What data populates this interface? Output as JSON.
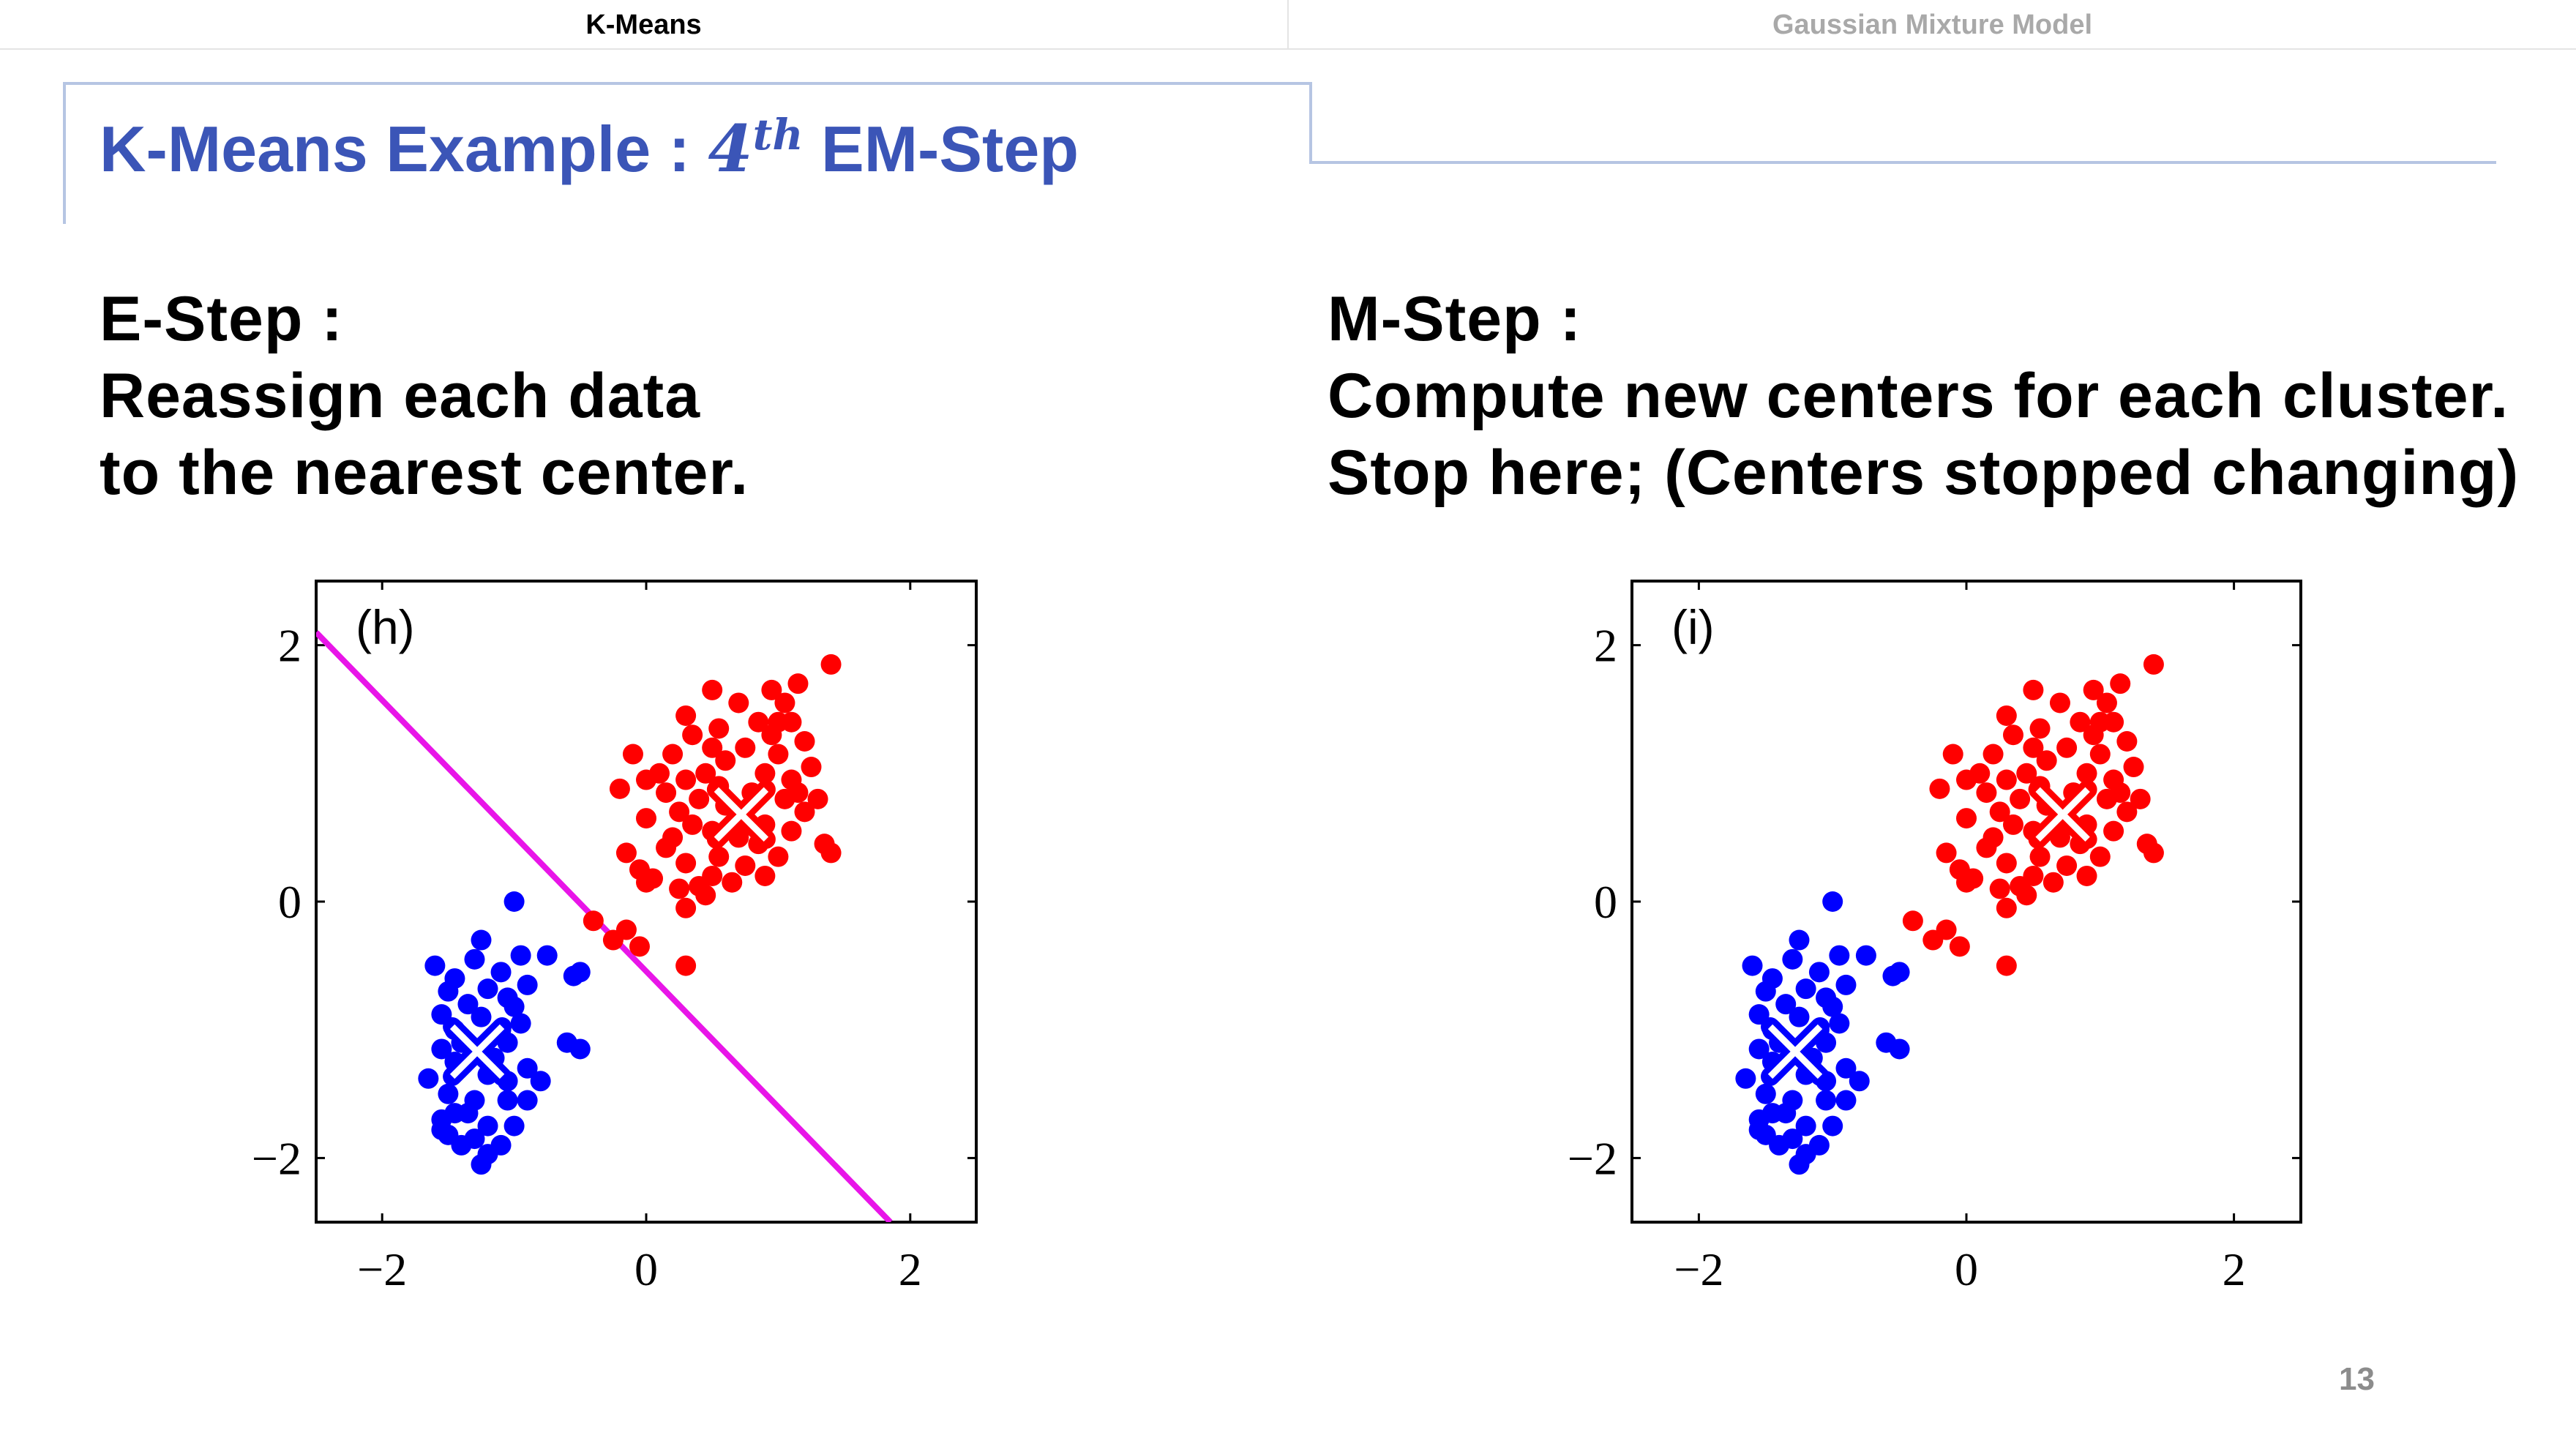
{
  "tabs": [
    {
      "label": "K-Means",
      "active": true
    },
    {
      "label": "Gaussian Mixture Model",
      "active": false
    }
  ],
  "slide_title": {
    "prefix": "K-Means Example : ",
    "math_base": "4",
    "math_sup": "th",
    "suffix": " EM-Step"
  },
  "left_text": {
    "heading": "E-Step :",
    "line1": "Reassign each data",
    "line2": "to the nearest center."
  },
  "right_text": {
    "heading": "M-Step :",
    "line1": "Compute new centers for each cluster.",
    "line2": "Stop here; (Centers stopped changing)"
  },
  "page_number": "13",
  "colors": {
    "red_cluster": "#ff0000",
    "blue_cluster": "#0000ff",
    "boundary": "#e815e8",
    "title": "#3b55b7"
  },
  "chart_data": [
    {
      "type": "scatter",
      "panel_label": "(h)",
      "xlim": [
        -2.5,
        2.5
      ],
      "ylim": [
        -2.5,
        2.5
      ],
      "x_ticks": [
        -2,
        0,
        2
      ],
      "y_ticks": [
        -2,
        0,
        2
      ],
      "tick_labels": [
        "−2",
        "0",
        "2"
      ],
      "centers": [
        {
          "cluster": "red",
          "x": 0.72,
          "y": 0.68
        },
        {
          "cluster": "blue",
          "x": -1.28,
          "y": -1.17
        }
      ],
      "decision_boundary": {
        "from": [
          -2.5,
          2.1
        ],
        "to": [
          1.85,
          -2.5
        ]
      },
      "series": [
        {
          "cluster": "red",
          "points": [
            [
              1.4,
              1.85
            ],
            [
              1.15,
              1.7
            ],
            [
              0.5,
              1.65
            ],
            [
              0.95,
              1.65
            ],
            [
              0.7,
              1.55
            ],
            [
              1.05,
              1.55
            ],
            [
              0.3,
              1.45
            ],
            [
              0.85,
              1.4
            ],
            [
              1.1,
              1.4
            ],
            [
              0.55,
              1.35
            ],
            [
              0.35,
              1.3
            ],
            [
              0.95,
              1.3
            ],
            [
              1.2,
              1.25
            ],
            [
              0.5,
              1.2
            ],
            [
              0.75,
              1.2
            ],
            [
              1.0,
              1.15
            ],
            [
              -0.1,
              1.15
            ],
            [
              0.2,
              1.15
            ],
            [
              0.6,
              1.1
            ],
            [
              1.25,
              1.05
            ],
            [
              0.45,
              1.0
            ],
            [
              0.9,
              1.0
            ],
            [
              1.1,
              0.95
            ],
            [
              0.0,
              0.95
            ],
            [
              0.3,
              0.95
            ],
            [
              0.55,
              0.9
            ],
            [
              1.15,
              0.85
            ],
            [
              -0.2,
              0.88
            ],
            [
              0.15,
              0.85
            ],
            [
              0.4,
              0.8
            ],
            [
              0.8,
              0.85
            ],
            [
              1.05,
              0.8
            ],
            [
              1.3,
              0.8
            ],
            [
              0.25,
              0.7
            ],
            [
              0.6,
              0.75
            ],
            [
              1.2,
              0.7
            ],
            [
              0.0,
              0.65
            ],
            [
              0.35,
              0.6
            ],
            [
              0.5,
              0.55
            ],
            [
              0.9,
              0.6
            ],
            [
              1.1,
              0.55
            ],
            [
              0.7,
              0.5
            ],
            [
              0.2,
              0.5
            ],
            [
              0.85,
              0.45
            ],
            [
              1.35,
              0.45
            ],
            [
              0.15,
              0.42
            ],
            [
              1.4,
              0.38
            ],
            [
              -0.15,
              0.38
            ],
            [
              0.55,
              0.35
            ],
            [
              1.0,
              0.35
            ],
            [
              0.3,
              0.3
            ],
            [
              0.75,
              0.28
            ],
            [
              -0.05,
              0.25
            ],
            [
              0.5,
              0.2
            ],
            [
              0.05,
              0.18
            ],
            [
              0.25,
              0.1
            ],
            [
              0.65,
              0.15
            ],
            [
              0.9,
              0.2
            ],
            [
              0.45,
              0.05
            ],
            [
              0.3,
              -0.05
            ],
            [
              -0.4,
              -0.15
            ],
            [
              -0.15,
              -0.22
            ],
            [
              -0.25,
              -0.3
            ],
            [
              -0.05,
              -0.35
            ],
            [
              0.3,
              -0.5
            ],
            [
              0.0,
              0.15
            ],
            [
              0.4,
              0.12
            ],
            [
              1.0,
              1.4
            ],
            [
              0.1,
              1.0
            ]
          ]
        },
        {
          "cluster": "blue",
          "points": [
            [
              -1.0,
              0.0
            ],
            [
              -1.25,
              -0.3
            ],
            [
              -1.3,
              -0.45
            ],
            [
              -0.75,
              -0.42
            ],
            [
              -0.95,
              -0.42
            ],
            [
              -1.6,
              -0.5
            ],
            [
              -1.45,
              -0.6
            ],
            [
              -1.1,
              -0.55
            ],
            [
              -0.55,
              -0.58
            ],
            [
              -1.5,
              -0.7
            ],
            [
              -1.2,
              -0.68
            ],
            [
              -0.9,
              -0.65
            ],
            [
              -1.05,
              -0.75
            ],
            [
              -1.35,
              -0.8
            ],
            [
              -1.0,
              -0.82
            ],
            [
              -1.55,
              -0.88
            ],
            [
              -1.25,
              -0.9
            ],
            [
              -1.45,
              -1.0
            ],
            [
              -1.1,
              -1.0
            ],
            [
              -0.95,
              -0.95
            ],
            [
              -1.4,
              -1.1
            ],
            [
              -0.6,
              -1.1
            ],
            [
              -1.55,
              -1.15
            ],
            [
              -1.05,
              -1.1
            ],
            [
              -0.5,
              -1.15
            ],
            [
              -1.45,
              -1.25
            ],
            [
              -0.9,
              -1.3
            ],
            [
              -1.2,
              -1.35
            ],
            [
              -1.65,
              -1.38
            ],
            [
              -1.05,
              -1.4
            ],
            [
              -0.8,
              -1.4
            ],
            [
              -1.5,
              -1.5
            ],
            [
              -1.3,
              -1.55
            ],
            [
              -1.05,
              -1.55
            ],
            [
              -0.9,
              -1.55
            ],
            [
              -1.35,
              -1.65
            ],
            [
              -1.55,
              -1.7
            ],
            [
              -1.2,
              -1.75
            ],
            [
              -1.0,
              -1.75
            ],
            [
              -1.5,
              -1.82
            ],
            [
              -1.3,
              -1.85
            ],
            [
              -1.1,
              -1.9
            ],
            [
              -1.4,
              -1.9
            ],
            [
              -1.2,
              -1.97
            ],
            [
              -1.45,
              -1.65
            ],
            [
              -1.55,
              -1.78
            ],
            [
              -1.25,
              -2.05
            ],
            [
              -0.5,
              -0.55
            ],
            [
              -1.15,
              -1.22
            ]
          ]
        }
      ]
    },
    {
      "type": "scatter",
      "panel_label": "(i)",
      "xlim": [
        -2.5,
        2.5
      ],
      "ylim": [
        -2.5,
        2.5
      ],
      "x_ticks": [
        -2,
        0,
        2
      ],
      "y_ticks": [
        -2,
        0,
        2
      ],
      "tick_labels": [
        "−2",
        "0",
        "2"
      ],
      "centers": [
        {
          "cluster": "red",
          "x": 0.72,
          "y": 0.68
        },
        {
          "cluster": "blue",
          "x": -1.28,
          "y": -1.17
        }
      ],
      "series": [
        {
          "cluster": "red",
          "points": [
            [
              1.4,
              1.85
            ],
            [
              1.15,
              1.7
            ],
            [
              0.5,
              1.65
            ],
            [
              0.95,
              1.65
            ],
            [
              0.7,
              1.55
            ],
            [
              1.05,
              1.55
            ],
            [
              0.3,
              1.45
            ],
            [
              0.85,
              1.4
            ],
            [
              1.1,
              1.4
            ],
            [
              0.55,
              1.35
            ],
            [
              0.35,
              1.3
            ],
            [
              0.95,
              1.3
            ],
            [
              1.2,
              1.25
            ],
            [
              0.5,
              1.2
            ],
            [
              0.75,
              1.2
            ],
            [
              1.0,
              1.15
            ],
            [
              -0.1,
              1.15
            ],
            [
              0.2,
              1.15
            ],
            [
              0.6,
              1.1
            ],
            [
              1.25,
              1.05
            ],
            [
              0.45,
              1.0
            ],
            [
              0.9,
              1.0
            ],
            [
              1.1,
              0.95
            ],
            [
              0.0,
              0.95
            ],
            [
              0.3,
              0.95
            ],
            [
              0.55,
              0.9
            ],
            [
              1.15,
              0.85
            ],
            [
              -0.2,
              0.88
            ],
            [
              0.15,
              0.85
            ],
            [
              0.4,
              0.8
            ],
            [
              0.8,
              0.85
            ],
            [
              1.05,
              0.8
            ],
            [
              1.3,
              0.8
            ],
            [
              0.25,
              0.7
            ],
            [
              0.6,
              0.75
            ],
            [
              1.2,
              0.7
            ],
            [
              0.0,
              0.65
            ],
            [
              0.35,
              0.6
            ],
            [
              0.5,
              0.55
            ],
            [
              0.9,
              0.6
            ],
            [
              1.1,
              0.55
            ],
            [
              0.7,
              0.5
            ],
            [
              0.2,
              0.5
            ],
            [
              0.85,
              0.45
            ],
            [
              1.35,
              0.45
            ],
            [
              0.15,
              0.42
            ],
            [
              1.4,
              0.38
            ],
            [
              -0.15,
              0.38
            ],
            [
              0.55,
              0.35
            ],
            [
              1.0,
              0.35
            ],
            [
              0.3,
              0.3
            ],
            [
              0.75,
              0.28
            ],
            [
              -0.05,
              0.25
            ],
            [
              0.5,
              0.2
            ],
            [
              0.05,
              0.18
            ],
            [
              0.25,
              0.1
            ],
            [
              0.65,
              0.15
            ],
            [
              0.9,
              0.2
            ],
            [
              0.45,
              0.05
            ],
            [
              0.3,
              -0.05
            ],
            [
              -0.4,
              -0.15
            ],
            [
              -0.15,
              -0.22
            ],
            [
              -0.25,
              -0.3
            ],
            [
              -0.05,
              -0.35
            ],
            [
              0.3,
              -0.5
            ],
            [
              0.0,
              0.15
            ],
            [
              0.4,
              0.12
            ],
            [
              1.0,
              1.4
            ],
            [
              0.1,
              1.0
            ]
          ]
        },
        {
          "cluster": "blue",
          "points": [
            [
              -1.0,
              0.0
            ],
            [
              -1.25,
              -0.3
            ],
            [
              -1.3,
              -0.45
            ],
            [
              -0.75,
              -0.42
            ],
            [
              -0.95,
              -0.42
            ],
            [
              -1.6,
              -0.5
            ],
            [
              -1.45,
              -0.6
            ],
            [
              -1.1,
              -0.55
            ],
            [
              -0.55,
              -0.58
            ],
            [
              -1.5,
              -0.7
            ],
            [
              -1.2,
              -0.68
            ],
            [
              -0.9,
              -0.65
            ],
            [
              -1.05,
              -0.75
            ],
            [
              -1.35,
              -0.8
            ],
            [
              -1.0,
              -0.82
            ],
            [
              -1.55,
              -0.88
            ],
            [
              -1.25,
              -0.9
            ],
            [
              -1.45,
              -1.0
            ],
            [
              -1.1,
              -1.0
            ],
            [
              -0.95,
              -0.95
            ],
            [
              -1.4,
              -1.1
            ],
            [
              -0.6,
              -1.1
            ],
            [
              -1.55,
              -1.15
            ],
            [
              -1.05,
              -1.1
            ],
            [
              -0.5,
              -1.15
            ],
            [
              -1.45,
              -1.25
            ],
            [
              -0.9,
              -1.3
            ],
            [
              -1.2,
              -1.35
            ],
            [
              -1.65,
              -1.38
            ],
            [
              -1.05,
              -1.4
            ],
            [
              -0.8,
              -1.4
            ],
            [
              -1.5,
              -1.5
            ],
            [
              -1.3,
              -1.55
            ],
            [
              -1.05,
              -1.55
            ],
            [
              -0.9,
              -1.55
            ],
            [
              -1.35,
              -1.65
            ],
            [
              -1.55,
              -1.7
            ],
            [
              -1.2,
              -1.75
            ],
            [
              -1.0,
              -1.75
            ],
            [
              -1.5,
              -1.82
            ],
            [
              -1.3,
              -1.85
            ],
            [
              -1.1,
              -1.9
            ],
            [
              -1.4,
              -1.9
            ],
            [
              -1.2,
              -1.97
            ],
            [
              -1.45,
              -1.65
            ],
            [
              -1.55,
              -1.78
            ],
            [
              -1.25,
              -2.05
            ],
            [
              -0.5,
              -0.55
            ],
            [
              -1.15,
              -1.22
            ]
          ]
        }
      ]
    }
  ]
}
